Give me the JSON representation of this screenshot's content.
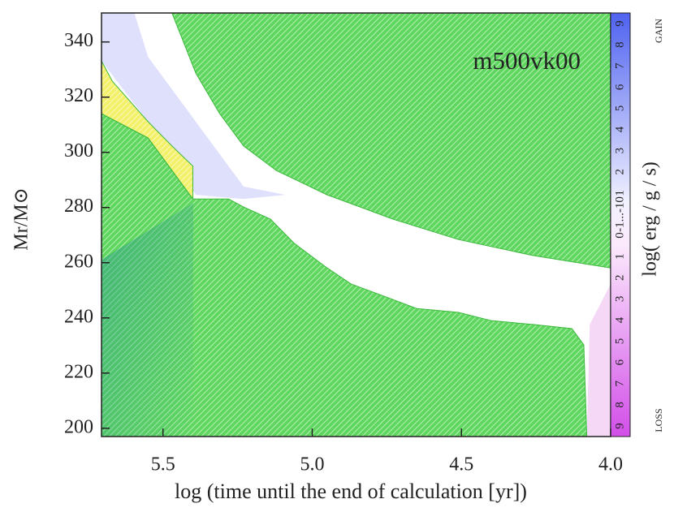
{
  "chart_data": {
    "type": "kippenhahn",
    "title": "m500vk00",
    "x_label": "log (time until the end of calculation [yr])",
    "y_label": "Mr/M⊙",
    "xlim": [
      5.706,
      4.0
    ],
    "ylim": [
      197,
      350.5
    ],
    "xticks": [
      5.5,
      {
        "value": 5.0,
        "label": "5.0"
      },
      4.5,
      {
        "value": 4.0,
        "label": "4.0"
      }
    ],
    "yticks": [
      200,
      220,
      240,
      260,
      280,
      300,
      320,
      340
    ],
    "regions": [
      {
        "color": "#dfe0fb",
        "hatch": false,
        "x": [
          5.706,
          5.596,
          5.55,
          5.39,
          5.23,
          5.09,
          5.23,
          5.39,
          5.55,
          5.706
        ],
        "y": [
          350.5,
          350.5,
          334.6,
          311.1,
          287.6,
          284.6,
          283.1,
          284.6,
          311.1,
          333.1
        ]
      },
      {
        "color": "#f3f06a",
        "hatch": true,
        "x": [
          5.706,
          5.67,
          5.55,
          5.47,
          5.4,
          5.4,
          5.55,
          5.706
        ],
        "y": [
          333.1,
          325.8,
          311.1,
          302.3,
          295.0,
          283.1,
          305.2,
          314.0
        ]
      },
      {
        "color": "#f4d8f6",
        "hatch": false,
        "x": [
          4.08,
          4.07,
          4.0,
          4.0
        ],
        "y": [
          197,
          237.6,
          252.3,
          197
        ]
      },
      {
        "color": "#5fd75f",
        "hatch": true,
        "x": [
          5.47,
          5.39,
          5.31,
          5.23,
          5.12,
          4.95,
          4.73,
          4.51,
          4.26,
          4.0,
          4.0
        ],
        "y": [
          350.5,
          328.7,
          314.0,
          302.3,
          293.4,
          284.6,
          275.8,
          268.4,
          262.6,
          258.1,
          350.5
        ]
      },
      {
        "color": "#5fd75f",
        "hatch": true,
        "x": [
          5.706,
          5.55,
          5.4,
          5.28,
          5.23,
          5.14,
          5.06,
          4.95,
          4.87,
          4.76,
          4.65,
          4.51,
          4.4,
          4.26,
          4.13,
          4.09,
          4.08,
          5.706
        ],
        "y": [
          314.0,
          305.2,
          283.1,
          283.1,
          280.2,
          275.8,
          267.0,
          258.1,
          252.3,
          247.9,
          243.4,
          242.0,
          239.0,
          237.6,
          236.1,
          230.2,
          197,
          197
        ]
      }
    ],
    "colorbar_label": "log( erg / g / s)",
    "colorbar_top": "GAIN",
    "colorbar_bottom": "LOSS",
    "colorbar_ticks": [
      "9",
      "8",
      "7",
      "6",
      "5",
      "4",
      "3",
      "2",
      "1",
      "0",
      "-1...-10",
      "1",
      "2",
      "3",
      "4",
      "5",
      "6",
      "7",
      "8",
      "9"
    ]
  }
}
